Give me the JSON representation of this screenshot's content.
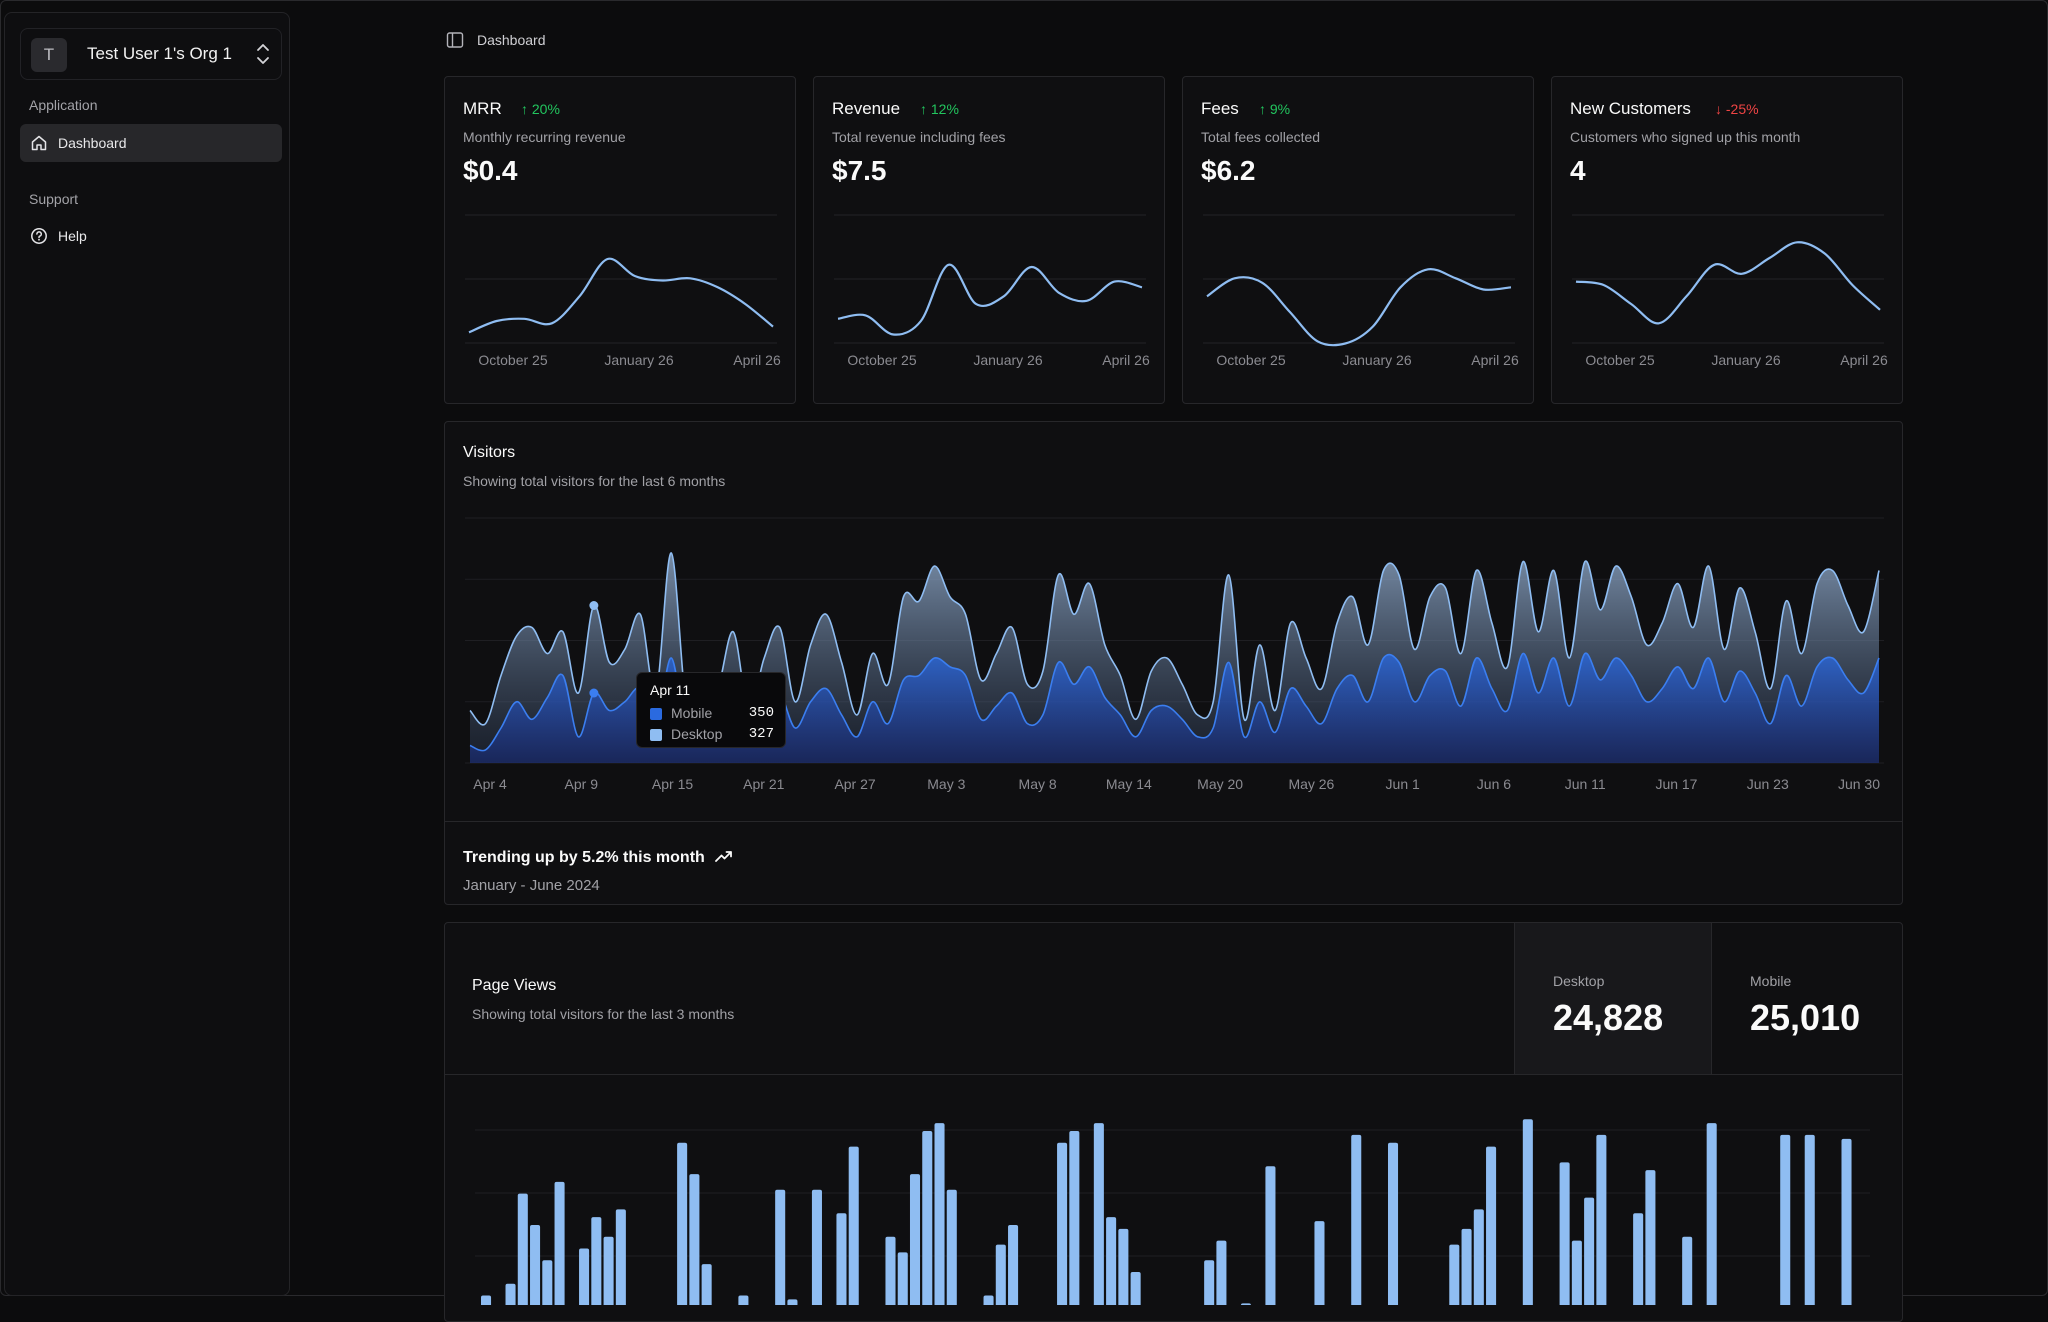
{
  "colors": {
    "background": "#0c0c0d",
    "card": "#0f0f11",
    "border": "#27272a",
    "accent_light": "#8fbdf2",
    "accent_dark": "#2a6ae0",
    "up": "#22c55e",
    "down": "#ef4444"
  },
  "sidebar": {
    "org": {
      "avatar_letter": "T",
      "name": "Test User 1's Org 1",
      "chevron_icon": "chevrons-up-down-icon"
    },
    "groups": [
      {
        "label": "Application",
        "items": [
          {
            "label": "Dashboard",
            "icon": "home-icon",
            "active": true
          }
        ]
      },
      {
        "label": "Support",
        "items": [
          {
            "label": "Help",
            "icon": "help-circle-icon",
            "active": false
          }
        ]
      }
    ]
  },
  "header": {
    "toggle_icon": "sidebar-toggle-icon",
    "breadcrumb": "Dashboard"
  },
  "kpis": [
    {
      "title": "MRR",
      "trend": "20%",
      "trend_dir": "up",
      "subtitle": "Monthly recurring revenue",
      "value": "$0.4",
      "ticks": [
        "October 25",
        "January 26",
        "April 26"
      ],
      "line": [
        30,
        40,
        42,
        38,
        62,
        95,
        80,
        76,
        78,
        70,
        55,
        35
      ]
    },
    {
      "title": "Revenue",
      "trend": "12%",
      "trend_dir": "up",
      "subtitle": "Total revenue including fees",
      "value": "$7.5",
      "ticks": [
        "October 25",
        "January 26",
        "April 26"
      ],
      "line": [
        42,
        45,
        28,
        40,
        90,
        55,
        62,
        88,
        65,
        58,
        75,
        70
      ]
    },
    {
      "title": "Fees",
      "trend": "9%",
      "trend_dir": "up",
      "subtitle": "Total fees collected",
      "value": "$6.2",
      "ticks": [
        "October 25",
        "January 26",
        "April 26"
      ],
      "line": [
        62,
        78,
        74,
        48,
        22,
        20,
        35,
        70,
        86,
        78,
        68,
        70
      ]
    },
    {
      "title": "New Customers",
      "trend": "-25%",
      "trend_dir": "down",
      "subtitle": "Customers who signed up this month",
      "value": "4",
      "ticks": [
        "October 25",
        "January 26",
        "April 26"
      ],
      "line": [
        75,
        72,
        55,
        38,
        62,
        90,
        82,
        96,
        110,
        100,
        72,
        50
      ]
    }
  ],
  "visitors": {
    "title": "Visitors",
    "subtitle": "Showing total visitors for the last 6 months",
    "trend_text": "Trending up by 5.2% this month",
    "trend_icon": "trending-up-icon",
    "date_range": "January - June 2024",
    "tooltip": {
      "date": "Apr 11",
      "rows": [
        {
          "name": "Mobile",
          "value": "350",
          "color": "#2a6ae0"
        },
        {
          "name": "Desktop",
          "value": "327",
          "color": "#8fbdf2"
        }
      ]
    }
  },
  "chart_data": [
    {
      "type": "area",
      "title": "Visitors",
      "x_ticks": [
        "Apr 4",
        "Apr 9",
        "Apr 15",
        "Apr 21",
        "Apr 27",
        "May 3",
        "May 8",
        "May 14",
        "May 20",
        "May 26",
        "Jun 1",
        "Jun 6",
        "Jun 11",
        "Jun 17",
        "Jun 23",
        "Jun 30"
      ],
      "grid": true,
      "series": [
        {
          "name": "Desktop",
          "values": [
            120,
            90,
            200,
            290,
            310,
            250,
            300,
            160,
            360,
            230,
            260,
            340,
            160,
            480,
            120,
            150,
            170,
            300,
            120,
            240,
            310,
            140,
            270,
            340,
            230,
            110,
            250,
            180,
            380,
            370,
            450,
            380,
            340,
            190,
            250,
            310,
            180,
            210,
            430,
            340,
            410,
            270,
            200,
            100,
            210,
            240,
            180,
            110,
            140,
            430,
            100,
            270,
            120,
            320,
            240,
            170,
            320,
            380,
            270,
            440,
            430,
            260,
            380,
            400,
            250,
            440,
            320,
            220,
            460,
            300,
            440,
            240,
            460,
            350,
            450,
            380,
            270,
            320,
            410,
            310,
            450,
            260,
            400,
            300,
            170,
            370,
            250,
            410,
            440,
            360,
            300,
            440
          ]
        },
        {
          "name": "Mobile",
          "values": [
            40,
            30,
            80,
            140,
            100,
            150,
            200,
            60,
            160,
            120,
            140,
            170,
            80,
            240,
            60,
            80,
            90,
            150,
            70,
            130,
            160,
            80,
            140,
            170,
            110,
            60,
            140,
            90,
            190,
            200,
            240,
            220,
            200,
            100,
            130,
            160,
            90,
            110,
            230,
            180,
            220,
            150,
            110,
            60,
            120,
            130,
            100,
            60,
            80,
            230,
            60,
            140,
            70,
            170,
            130,
            90,
            170,
            200,
            140,
            240,
            230,
            140,
            200,
            210,
            130,
            240,
            170,
            120,
            250,
            160,
            240,
            130,
            250,
            190,
            240,
            200,
            140,
            170,
            220,
            170,
            240,
            140,
            210,
            160,
            90,
            200,
            130,
            220,
            240,
            190,
            160,
            240
          ]
        }
      ],
      "ylim": [
        0,
        560
      ]
    },
    {
      "type": "bar",
      "title": "Page Views",
      "series": [
        {
          "name": "Desktop",
          "values": [
            60,
            0,
            90,
            320,
            240,
            150,
            350,
            0,
            180,
            260,
            210,
            280,
            0,
            0,
            0,
            0,
            450,
            370,
            140,
            0,
            0,
            60,
            0,
            0,
            330,
            50,
            0,
            330,
            0,
            270,
            440,
            0,
            0,
            210,
            170,
            370,
            480,
            500,
            330,
            0,
            0,
            60,
            190,
            240,
            0,
            0,
            0,
            450,
            480,
            0,
            500,
            260,
            230,
            120,
            0,
            0,
            0,
            0,
            0,
            150,
            200,
            0,
            40,
            0,
            390,
            0,
            0,
            0,
            250,
            0,
            0,
            470,
            0,
            0,
            450,
            0,
            0,
            0,
            0,
            190,
            230,
            280,
            440,
            0,
            0,
            510,
            0,
            0,
            400,
            200,
            310,
            470,
            0,
            0,
            270,
            380,
            0,
            0,
            210,
            0,
            500,
            0,
            0,
            0,
            0,
            0,
            470,
            0,
            470,
            0,
            0,
            460,
            0
          ]
        }
      ],
      "ylim": [
        0,
        600
      ]
    }
  ],
  "page_views": {
    "title": "Page Views",
    "subtitle": "Showing total visitors for the last 3 months",
    "desktop_label": "Desktop",
    "desktop_value": "24,828",
    "mobile_label": "Mobile",
    "mobile_value": "25,010"
  }
}
